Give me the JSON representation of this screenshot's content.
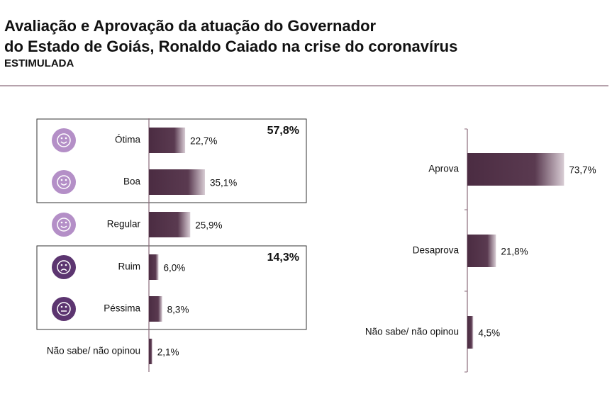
{
  "header": {
    "title_lines": [
      "Avaliação e Aprovação da atuação do Governador",
      "do Estado de Goiás, Ronaldo Caiado na crise do coronavírus"
    ],
    "subtitle": "ESTIMULADA"
  },
  "chart_data": [
    {
      "type": "hbar",
      "categories": [
        "Ótima",
        "Boa",
        "Regular",
        "Ruim",
        "Péssima",
        "Não sabe/ não opinou"
      ],
      "values": [
        22.7,
        35.1,
        25.9,
        6.0,
        8.3,
        2.1
      ],
      "value_labels": [
        "22,7%",
        "35,1%",
        "25,9%",
        "6,0%",
        "8,3%",
        "2,1%"
      ],
      "color": "#4b2c42",
      "annotations": [
        {
          "value": 57.8,
          "label": "57,8%"
        },
        {
          "value": 14.3,
          "label": "14,3%"
        }
      ]
    },
    {
      "type": "hbar",
      "categories": [
        "Aprova",
        "Desaprova",
        "Não sabe/ não opinou"
      ],
      "values": [
        73.7,
        21.8,
        4.5
      ],
      "value_labels": [
        "73,7%",
        "21,8%",
        "4,5%"
      ],
      "color": "#4b2c42"
    }
  ]
}
